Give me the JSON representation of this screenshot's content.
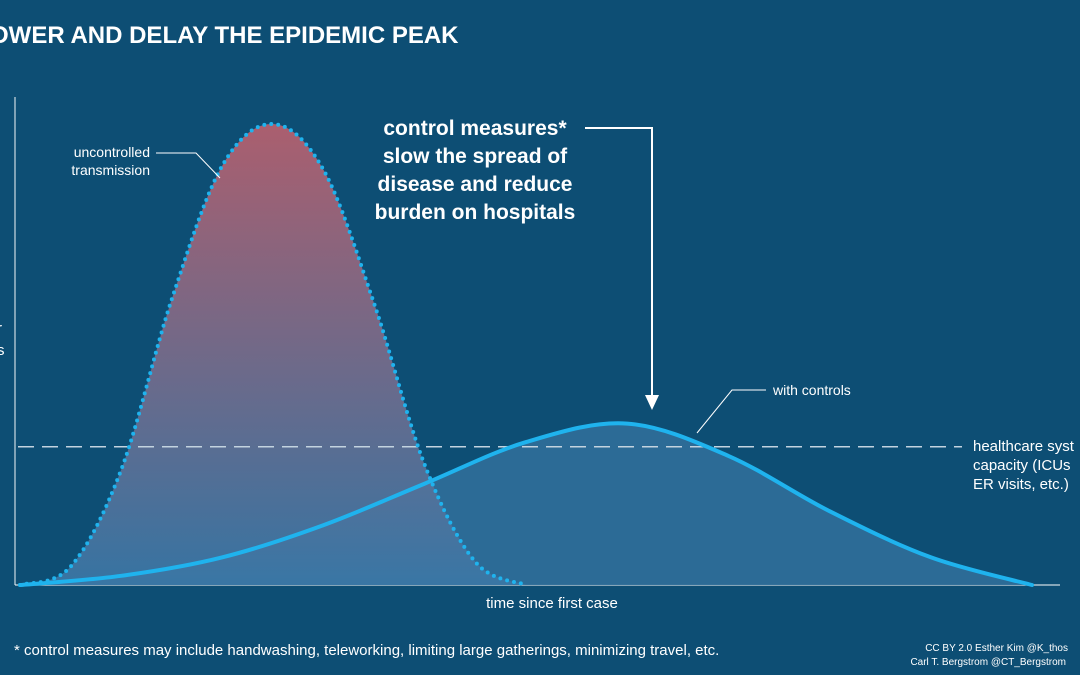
{
  "chart_data": {
    "type": "area",
    "title": "OWER AND DELAY THE EPIDEMIC PEAK",
    "ylabel_fragments": [
      "r",
      "s"
    ],
    "xlabel": "time since first case",
    "xlim": [
      0,
      100
    ],
    "ylim": [
      0,
      100
    ],
    "series": [
      {
        "name": "uncontrolled transmission",
        "style": "dotted",
        "x": [
          0,
          5,
          10,
          15,
          20,
          25,
          30,
          35,
          40,
          45,
          50
        ],
        "y": [
          0,
          4,
          25,
          62,
          91,
          100,
          90,
          61,
          26,
          5,
          0
        ]
      },
      {
        "name": "with controls",
        "style": "solid",
        "x": [
          0,
          10,
          20,
          30,
          40,
          50,
          60,
          70,
          80,
          90,
          100
        ],
        "y": [
          0,
          2,
          6,
          13,
          22,
          31,
          35,
          28,
          16,
          6,
          0
        ]
      }
    ],
    "reference_line": {
      "y": 30,
      "label_lines": [
        "healthcare syst",
        "capacity (ICUs",
        "ER visits, etc.)"
      ]
    },
    "annotations": {
      "uncontrolled_lines": [
        "uncontrolled",
        "transmission"
      ],
      "with_controls": "with controls",
      "control_lines": [
        "control measures*",
        "slow the spread of",
        "disease and reduce",
        "burden on hospitals"
      ]
    },
    "footnote": "* control measures may include handwashing, teleworking, limiting large gatherings, minimizing travel, etc.",
    "credits": [
      "CC BY 2.0  Esther Kim  @K_thos",
      "Carl T. Bergstrom   @CT_Bergstrom"
    ],
    "colors": {
      "background": "#0d4e74",
      "curve": "#1fb3ee",
      "uncontrolled_fill_top": "#b8606e",
      "uncontrolled_fill_bottom": "#3a77a6",
      "controlled_fill": "#2e6d98",
      "reference_line": "#c3d3df",
      "text": "#ffffff"
    }
  }
}
